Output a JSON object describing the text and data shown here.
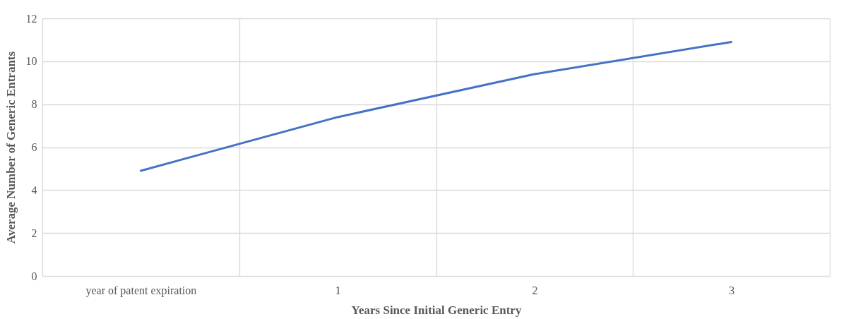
{
  "chart_data": {
    "type": "line",
    "xlabel": "Years Since Initial Generic Entry",
    "ylabel": "Average Number of Generic Entrants",
    "categories": [
      "year of patent expiration",
      "1",
      "2",
      "3"
    ],
    "series": [
      {
        "color": "#4472c4",
        "values": [
          4.9,
          7.4,
          9.4,
          10.9
        ]
      }
    ],
    "ylim": [
      0,
      12
    ],
    "yticks": [
      0,
      2,
      4,
      6,
      8,
      10,
      12
    ],
    "grid": true,
    "marker": "none",
    "line_style": "solid"
  }
}
